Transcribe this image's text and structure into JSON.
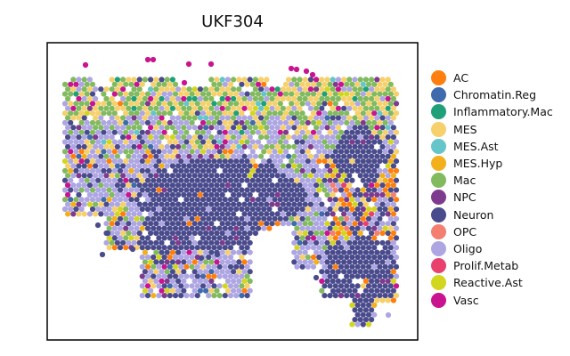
{
  "chart_data": {
    "type": "scatter",
    "title": "UKF304",
    "xlabel": "",
    "ylabel": "",
    "grid": false,
    "axis_ticks": false,
    "legend_position": "right",
    "categories": [
      {
        "name": "AC",
        "color": "#ff7f0e"
      },
      {
        "name": "Chromatin.Reg",
        "color": "#3f6aad"
      },
      {
        "name": "Inflammatory.Mac",
        "color": "#1fa078"
      },
      {
        "name": "MES",
        "color": "#f6d06b"
      },
      {
        "name": "MES.Ast",
        "color": "#65c5c8"
      },
      {
        "name": "MES.Hyp",
        "color": "#f2b01c"
      },
      {
        "name": "Mac",
        "color": "#82ba5f"
      },
      {
        "name": "NPC",
        "color": "#7e3b8e"
      },
      {
        "name": "Neuron",
        "color": "#4a4b8c"
      },
      {
        "name": "OPC",
        "color": "#f47e70"
      },
      {
        "name": "Oligo",
        "color": "#aea6e3"
      },
      {
        "name": "Prolif.Metab",
        "color": "#e8416d"
      },
      {
        "name": "Reactive.Ast",
        "color": "#d3d61f"
      },
      {
        "name": "Vasc",
        "color": "#c8148f"
      }
    ]
  }
}
